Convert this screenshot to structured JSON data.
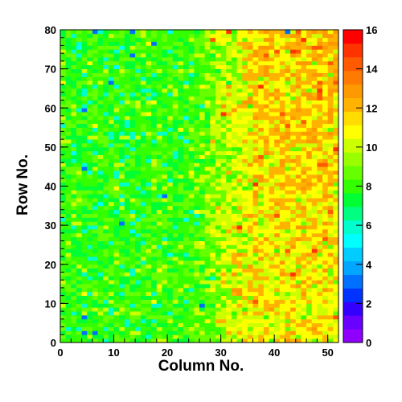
{
  "chart_data": {
    "type": "heatmap",
    "title": "",
    "xlabel": "Column No.",
    "ylabel": "Row No.",
    "xlim": [
      0,
      52
    ],
    "ylim": [
      0,
      80
    ],
    "x_ticks": [
      0,
      10,
      20,
      30,
      40,
      50
    ],
    "y_ticks": [
      0,
      10,
      20,
      30,
      40,
      50,
      60,
      70,
      80
    ],
    "n_columns": 52,
    "n_rows": 80,
    "colorbar": {
      "range": [
        0,
        16
      ],
      "ticks": [
        0,
        2,
        4,
        6,
        8,
        10,
        12,
        14,
        16
      ],
      "palette": [
        "#8f00ff",
        "#6a00ff",
        "#3300ff",
        "#0033ff",
        "#0070ff",
        "#00a6ff",
        "#00ccff",
        "#00ffff",
        "#00ffcc",
        "#00ff80",
        "#00ff33",
        "#33ff00",
        "#66ff00",
        "#99ff00",
        "#ccff00",
        "#ffff00",
        "#ffdd00",
        "#ffb300",
        "#ff9900",
        "#ff7a00",
        "#ff5a00",
        "#ff3300",
        "#ff0000"
      ]
    },
    "trend": {
      "description_values": {
        "left_region_mean": 8.0,
        "right_region_mean": 11.0,
        "upper_right_mean": 12.5,
        "min_observed": 2,
        "max_observed": 16
      }
    },
    "notable_cells": [
      {
        "x": 6,
        "y": 79,
        "value": 3
      },
      {
        "x": 13,
        "y": 79,
        "value": 3
      },
      {
        "x": 42,
        "y": 79,
        "value": 3
      },
      {
        "x": 31,
        "y": 79,
        "value": 15
      },
      {
        "x": 17,
        "y": 76,
        "value": 3
      },
      {
        "x": 28,
        "y": 77,
        "value": 14
      },
      {
        "x": 45,
        "y": 77,
        "value": 15
      },
      {
        "x": 13,
        "y": 73,
        "value": 3
      },
      {
        "x": 43,
        "y": 74,
        "value": 15
      },
      {
        "x": 9,
        "y": 66,
        "value": 3
      },
      {
        "x": 37,
        "y": 65,
        "value": 15
      },
      {
        "x": 48,
        "y": 64,
        "value": 15
      },
      {
        "x": 4,
        "y": 59,
        "value": 3
      },
      {
        "x": 30,
        "y": 58,
        "value": 15
      },
      {
        "x": 51,
        "y": 49,
        "value": 15
      },
      {
        "x": 4,
        "y": 44,
        "value": 3
      },
      {
        "x": 19,
        "y": 37,
        "value": 3
      },
      {
        "x": 36,
        "y": 40,
        "value": 15
      },
      {
        "x": 11,
        "y": 30,
        "value": 3
      },
      {
        "x": 33,
        "y": 29,
        "value": 15
      },
      {
        "x": 47,
        "y": 23,
        "value": 15
      },
      {
        "x": 43,
        "y": 17,
        "value": 15
      },
      {
        "x": 26,
        "y": 9,
        "value": 3
      },
      {
        "x": 36,
        "y": 10,
        "value": 14
      },
      {
        "x": 4,
        "y": 6,
        "value": 3
      },
      {
        "x": 4,
        "y": 2,
        "value": 3
      },
      {
        "x": 6,
        "y": 2,
        "value": 3
      }
    ],
    "seed": 1337
  }
}
